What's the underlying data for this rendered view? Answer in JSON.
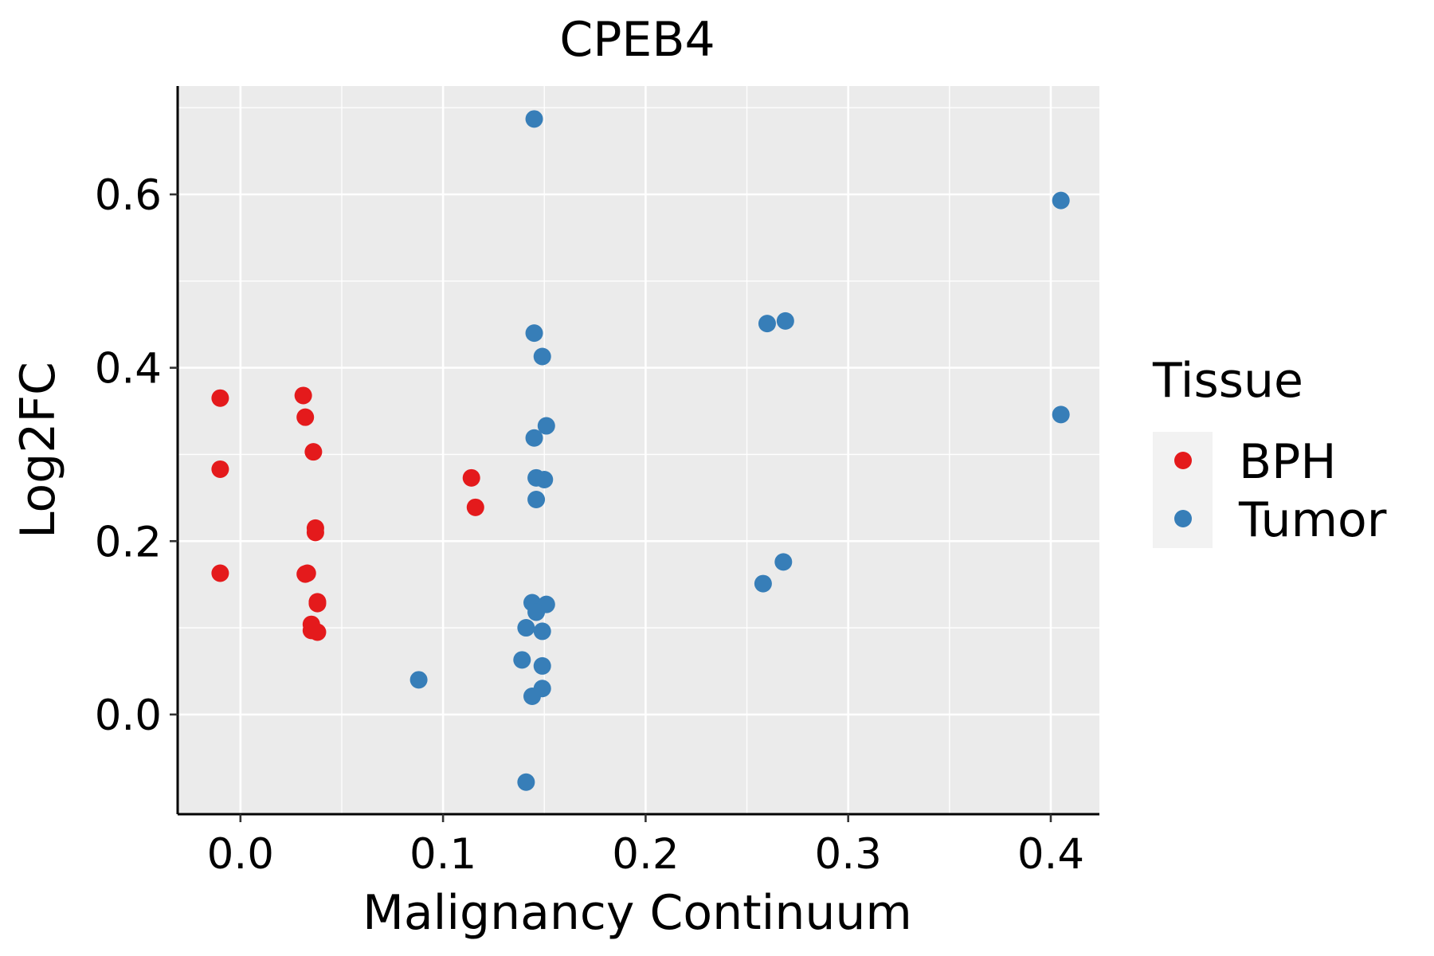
{
  "chart_data": {
    "type": "scatter",
    "title": "CPEB4",
    "xlabel": "Malignancy Continuum",
    "ylabel": "Log2FC",
    "xlim": [
      -0.031,
      0.424
    ],
    "ylim": [
      -0.115,
      0.725
    ],
    "x_ticks": [
      0.0,
      0.1,
      0.2,
      0.3,
      0.4
    ],
    "x_tick_labels": [
      "0.0",
      "0.1",
      "0.2",
      "0.3",
      "0.4"
    ],
    "y_ticks": [
      0.0,
      0.2,
      0.4,
      0.6
    ],
    "y_tick_labels": [
      "0.0",
      "0.2",
      "0.4",
      "0.6"
    ],
    "x_minor": [
      0.05,
      0.15,
      0.25,
      0.35
    ],
    "y_minor": [
      0.1,
      0.3,
      0.5,
      0.7
    ],
    "grid": true,
    "legend": {
      "title": "Tissue",
      "position": "right"
    },
    "series": [
      {
        "name": "BPH",
        "color": "#e41a1c",
        "points": [
          [
            -0.01,
            0.365
          ],
          [
            -0.01,
            0.283
          ],
          [
            -0.01,
            0.163
          ],
          [
            0.031,
            0.368
          ],
          [
            0.032,
            0.343
          ],
          [
            0.036,
            0.303
          ],
          [
            0.037,
            0.215
          ],
          [
            0.037,
            0.21
          ],
          [
            0.032,
            0.162
          ],
          [
            0.033,
            0.163
          ],
          [
            0.038,
            0.13
          ],
          [
            0.038,
            0.128
          ],
          [
            0.035,
            0.104
          ],
          [
            0.035,
            0.097
          ],
          [
            0.038,
            0.095
          ],
          [
            0.114,
            0.273
          ],
          [
            0.116,
            0.239
          ]
        ]
      },
      {
        "name": "Tumor",
        "color": "#377eb8",
        "points": [
          [
            0.145,
            0.687
          ],
          [
            0.145,
            0.44
          ],
          [
            0.149,
            0.413
          ],
          [
            0.151,
            0.333
          ],
          [
            0.145,
            0.319
          ],
          [
            0.146,
            0.273
          ],
          [
            0.15,
            0.271
          ],
          [
            0.146,
            0.248
          ],
          [
            0.144,
            0.129
          ],
          [
            0.151,
            0.127
          ],
          [
            0.146,
            0.118
          ],
          [
            0.141,
            0.1
          ],
          [
            0.149,
            0.096
          ],
          [
            0.139,
            0.063
          ],
          [
            0.149,
            0.056
          ],
          [
            0.149,
            0.03
          ],
          [
            0.144,
            0.021
          ],
          [
            0.141,
            -0.078
          ],
          [
            0.088,
            0.04
          ],
          [
            0.26,
            0.451
          ],
          [
            0.269,
            0.454
          ],
          [
            0.258,
            0.151
          ],
          [
            0.268,
            0.176
          ],
          [
            0.405,
            0.593
          ],
          [
            0.405,
            0.346
          ]
        ]
      }
    ]
  }
}
